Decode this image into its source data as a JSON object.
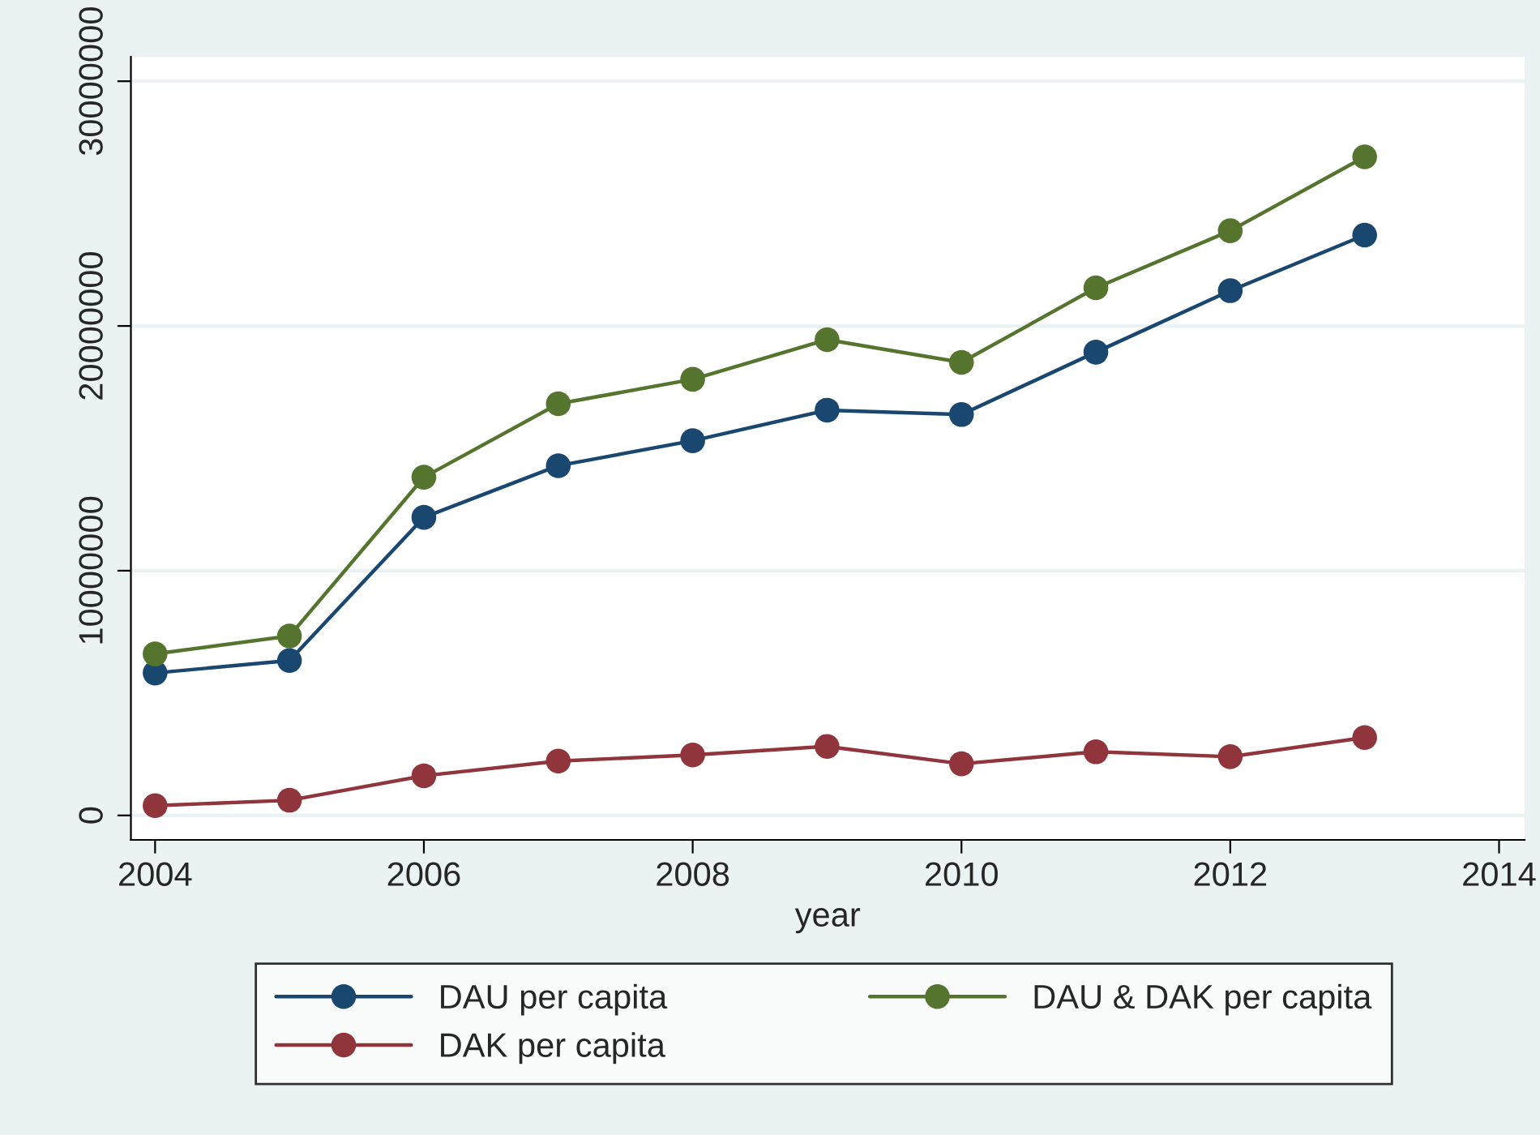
{
  "chart_data": {
    "type": "line",
    "xlabel": "year",
    "x": [
      2004,
      2005,
      2006,
      2007,
      2008,
      2009,
      2010,
      2011,
      2012,
      2013
    ],
    "series": [
      {
        "name": "DAU per capita",
        "color": "#1a476f",
        "values": [
          5820000,
          6330000,
          12180000,
          14290000,
          15310000,
          16560000,
          16380000,
          18930000,
          21440000,
          23710000
        ]
      },
      {
        "name": "DAK per capita",
        "color": "#90353b",
        "values": [
          400000,
          620000,
          1620000,
          2220000,
          2470000,
          2820000,
          2110000,
          2600000,
          2400000,
          3180000
        ]
      },
      {
        "name": "DAU & DAK per capita",
        "color": "#55752f",
        "values": [
          6600000,
          7330000,
          13820000,
          16820000,
          17820000,
          19440000,
          18510000,
          21560000,
          23890000,
          26910000
        ]
      }
    ],
    "xlim": [
      2003.82,
      2014.19
    ],
    "xticks": [
      2004,
      2006,
      2008,
      2010,
      2012,
      2014
    ],
    "ylim": [
      -1000000,
      31000000
    ],
    "yticks": [
      0,
      10000000,
      20000000,
      30000000
    ],
    "grid": "y",
    "legend": "bottom",
    "marker": "circle",
    "line_style": "solid"
  }
}
